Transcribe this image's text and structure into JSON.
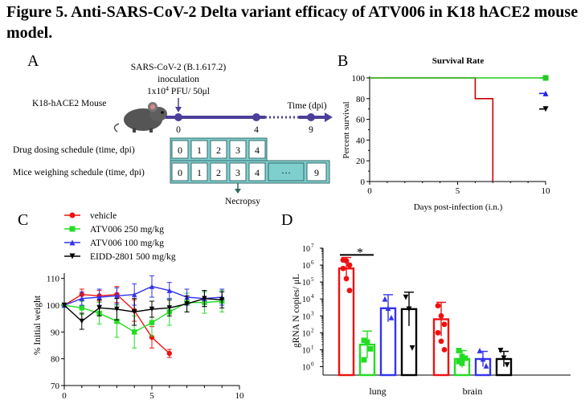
{
  "figure": {
    "title": "Figure 5. Anti-SARS-CoV-2 Delta variant efficacy of ATV006 in K18 hACE2 mouse model."
  },
  "panel_a": {
    "letter": "A",
    "virus_line1": "SARS-CoV-2  (B.1.617.2)",
    "virus_line2": "inoculation",
    "dose_prefix": "1x10",
    "dose_exp": "4",
    "dose_suffix": " PFU/ 50μl",
    "mouse_label": "K18-hACE2 Mouse",
    "time_label": "Time (dpi)",
    "timeline_ticks": [
      "0",
      "4",
      "9"
    ],
    "drug_label": "Drug dosing schedule (time, dpi)",
    "drug_days": [
      "0",
      "1",
      "2",
      "3",
      "4"
    ],
    "weigh_label": "Mice weighing schedule (time, dpi)",
    "weigh_days": [
      "0",
      "1",
      "2",
      "3",
      "4",
      "···",
      "9"
    ],
    "necropsy": "Necropsy",
    "colors": {
      "box_fill": "#7fcfcf",
      "timeline": "#4b3f99"
    }
  },
  "chart_data": [
    {
      "panel": "B",
      "type": "line",
      "title": "Survival Rate",
      "xlabel": "Days post-infection (i.n.)",
      "ylabel": "Percent survival",
      "xlim": [
        0,
        10
      ],
      "ylim": [
        0,
        100
      ],
      "xticks": [
        "0",
        "5",
        "10"
      ],
      "yticks": [
        "0",
        "20",
        "40",
        "60",
        "80",
        "100"
      ],
      "series": [
        {
          "color": "#cc0000",
          "marker": "none",
          "x": [
            0,
            6,
            6,
            7,
            7
          ],
          "y": [
            100,
            100,
            80,
            80,
            0
          ]
        },
        {
          "color": "#22cc22",
          "marker": "square",
          "x": [
            0,
            10
          ],
          "y": [
            100,
            100
          ]
        },
        {
          "color": "#2222ee",
          "marker": "triangle",
          "x": [
            10
          ],
          "y": [
            85
          ]
        },
        {
          "color": "#000000",
          "marker": "triangle-down",
          "x": [
            10
          ],
          "y": [
            70
          ]
        }
      ]
    },
    {
      "panel": "C",
      "type": "line",
      "ylabel": "% Initial  weight",
      "xlim": [
        0,
        10
      ],
      "ylim": [
        70,
        115
      ],
      "xticks": [
        "0",
        "5",
        "10"
      ],
      "yticks": [
        "70",
        "80",
        "90",
        "100",
        "110"
      ],
      "series": [
        {
          "name": "vehicle",
          "color": "#ee1111",
          "marker": "circle",
          "x": [
            0,
            1,
            2,
            3,
            4,
            5,
            6
          ],
          "y": [
            100,
            104,
            103.5,
            104,
            98,
            88,
            82
          ],
          "err": [
            0,
            2,
            2,
            3,
            4,
            4,
            1.5
          ]
        },
        {
          "name": "ATV006 250 mg/kg",
          "color": "#22dd22",
          "marker": "square",
          "x": [
            0,
            1,
            2,
            3,
            4,
            5,
            6,
            7,
            8,
            9
          ],
          "y": [
            100,
            99,
            97,
            94,
            90,
            93.5,
            97.5,
            101,
            101,
            101.5
          ],
          "err": [
            0,
            2.5,
            4,
            6,
            6,
            5,
            5,
            3.5,
            4,
            4
          ]
        },
        {
          "name": "ATV006 100 mg/kg",
          "color": "#3333ee",
          "marker": "triangle",
          "x": [
            0,
            1,
            2,
            3,
            4,
            5,
            6,
            7,
            8,
            9
          ],
          "y": [
            100,
            102.5,
            103,
            103.5,
            104,
            107,
            105.5,
            103,
            102.5,
            103
          ],
          "err": [
            0,
            2.5,
            3,
            3,
            4,
            4,
            3,
            3,
            3,
            3
          ]
        },
        {
          "name": "EIDD-2801 500 mg/kg",
          "color": "#000000",
          "marker": "triangle-down",
          "x": [
            0,
            1,
            2,
            3,
            4,
            5,
            6,
            7,
            8,
            9
          ],
          "y": [
            100,
            94,
            99,
            98.5,
            97.5,
            98.5,
            99,
            100.5,
            102.5,
            102
          ],
          "err": [
            0,
            3,
            3,
            4,
            5,
            3,
            3,
            3,
            3,
            3
          ]
        }
      ]
    },
    {
      "panel": "D",
      "type": "bar",
      "ylabel": "gRNA N copies/ μL",
      "log_scale": true,
      "ylim_exp": [
        -0.5,
        7
      ],
      "yticks_exp": [
        0,
        1,
        2,
        3,
        4,
        5,
        6,
        7
      ],
      "categories": [
        "lung",
        "brain"
      ],
      "significance": {
        "label": "*",
        "between": [
          "vehicle",
          "ATV006 250 mg/kg"
        ],
        "category": "lung"
      },
      "series": [
        {
          "name": "vehicle",
          "color": "#ee1111",
          "marker": "circle",
          "values_exp": [
            5.8,
            2.8
          ],
          "err_exp": [
            0.65,
            1.0
          ],
          "points_exp": [
            [
              6.3,
              6.25,
              6.0,
              5.8,
              5.2,
              4.5
            ],
            [
              3.6,
              3.0,
              2.5,
              2.0,
              1.5,
              1.0
            ]
          ]
        },
        {
          "name": "ATV006 250 mg/kg",
          "color": "#22dd22",
          "marker": "square",
          "values_exp": [
            1.3,
            0.45
          ],
          "err_exp": [
            0.8,
            0.5
          ],
          "points_exp": [
            [
              1.55,
              1.45,
              1.05,
              0.4
            ],
            [
              0.95,
              0.6,
              0.5,
              0.3,
              0.2
            ]
          ]
        },
        {
          "name": "ATV006 100 mg/kg",
          "color": "#3333ee",
          "marker": "triangle",
          "values_exp": [
            3.45,
            0.45
          ],
          "err_exp": [
            0.8,
            0.45
          ],
          "points_exp": [
            [
              4.0,
              3.45,
              2.9
            ],
            [
              0.95,
              0.45,
              0.05
            ]
          ]
        },
        {
          "name": "EIDD-2801 500 mg/kg",
          "color": "#000000",
          "marker": "triangle-down",
          "values_exp": [
            3.4,
            0.45
          ],
          "err_exp": [
            1.0,
            0.45
          ],
          "points_exp": [
            [
              4.1,
              3.4,
              1.1
            ],
            [
              0.95,
              0.5,
              0.1
            ]
          ]
        }
      ]
    }
  ],
  "panel_letters": {
    "b": "B",
    "c": "C",
    "d": "D"
  }
}
